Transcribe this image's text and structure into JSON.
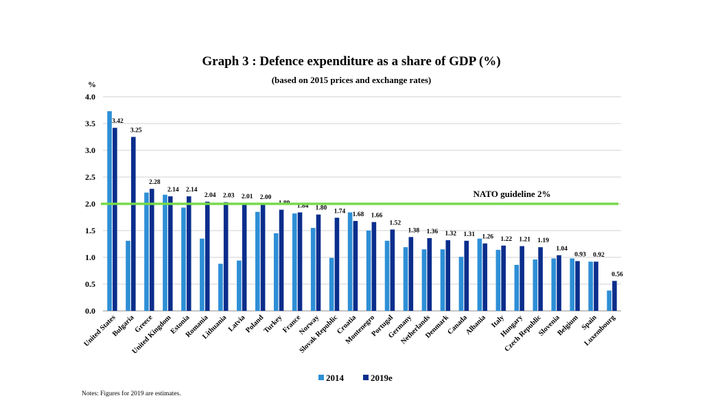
{
  "chart_data": {
    "type": "bar",
    "title": "Graph 3 : Defence expenditure as a share of GDP (%)",
    "subtitle": "(based on 2015 prices and exchange rates)",
    "ylabel": "%",
    "ylim": [
      0,
      4
    ],
    "yticks": [
      "0.0",
      "0.5",
      "1.0",
      "1.5",
      "2.0",
      "2.5",
      "3.0",
      "3.5",
      "4.0"
    ],
    "grid": true,
    "legend_position": "bottom",
    "categories": [
      "United States",
      "Bulgaria",
      "Greece",
      "United Kingdom",
      "Estonia",
      "Romania",
      "Lithuania",
      "Latvia",
      "Poland",
      "Turkey",
      "France",
      "Norway",
      "Slovak Republic",
      "Croatia",
      "Montenegro",
      "Portugal",
      "Germany",
      "Netherlands",
      "Denmark",
      "Canada",
      "Albania",
      "Italy",
      "Hungary",
      "Czech Republic",
      "Slovenia",
      "Belgium",
      "Spain",
      "Luxembourg"
    ],
    "series": [
      {
        "name": "2014",
        "color": "#2e8fd6",
        "values": [
          3.73,
          1.31,
          2.21,
          2.17,
          1.93,
          1.35,
          0.88,
          0.94,
          1.85,
          1.45,
          1.82,
          1.55,
          0.99,
          1.84,
          1.5,
          1.31,
          1.19,
          1.15,
          1.15,
          1.01,
          1.35,
          1.14,
          0.86,
          0.96,
          0.98,
          0.98,
          0.92,
          0.38
        ]
      },
      {
        "name": "2019e",
        "color": "#0a2e8c",
        "values": [
          3.42,
          3.25,
          2.28,
          2.14,
          2.14,
          2.04,
          2.03,
          2.01,
          2.0,
          1.89,
          1.84,
          1.8,
          1.74,
          1.68,
          1.66,
          1.52,
          1.38,
          1.36,
          1.32,
          1.31,
          1.26,
          1.22,
          1.21,
          1.19,
          1.04,
          0.93,
          0.92,
          0.56
        ],
        "labels": [
          "3.42",
          "3.25",
          "2.28",
          "2.14",
          "2.14",
          "2.04",
          "2.03",
          "2.01",
          "2.00",
          "1.89",
          "1.84",
          "1.80",
          "1.74",
          "1.68",
          "1.66",
          "1.52",
          "1.38",
          "1.36",
          "1.32",
          "1.31",
          "1.26",
          "1.22",
          "1.21",
          "1.19",
          "1.04",
          "0.93",
          "0.92",
          "0.56"
        ]
      }
    ],
    "reference_line": {
      "value": 2.0,
      "label": "NATO guideline 2%",
      "color": "#77d94a"
    },
    "note": "Notes: Figures for 2019 are estimates."
  }
}
